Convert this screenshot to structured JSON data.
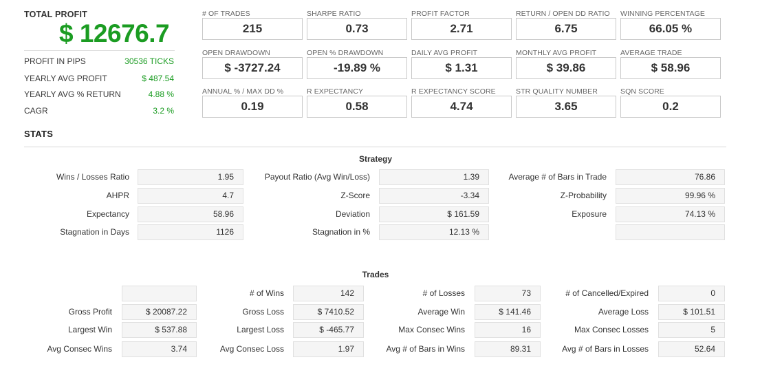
{
  "summary": {
    "total_profit_label": "TOTAL PROFIT",
    "total_profit_value": "$ 12676.7",
    "rows": [
      {
        "label": "PROFIT IN PIPS",
        "value": "30536 TICKS"
      },
      {
        "label": "YEARLY AVG PROFIT",
        "value": "$ 487.54"
      },
      {
        "label": "YEARLY AVG % RETURN",
        "value": "4.88 %"
      },
      {
        "label": "CAGR",
        "value": "3.2 %"
      }
    ]
  },
  "metrics": [
    {
      "label": "# OF TRADES",
      "value": "215"
    },
    {
      "label": "SHARPE RATIO",
      "value": "0.73"
    },
    {
      "label": "PROFIT FACTOR",
      "value": "2.71"
    },
    {
      "label": "RETURN / OPEN DD RATIO",
      "value": "6.75"
    },
    {
      "label": "WINNING PERCENTAGE",
      "value": "66.05 %"
    },
    {
      "label": "OPEN DRAWDOWN",
      "value": "$ -3727.24"
    },
    {
      "label": "OPEN % DRAWDOWN",
      "value": "-19.89 %"
    },
    {
      "label": "DAILY AVG PROFIT",
      "value": "$ 1.31"
    },
    {
      "label": "MONTHLY AVG PROFIT",
      "value": "$ 39.86"
    },
    {
      "label": "AVERAGE TRADE",
      "value": "$ 58.96"
    },
    {
      "label": "ANNUAL % / MAX DD %",
      "value": "0.19"
    },
    {
      "label": "R EXPECTANCY",
      "value": "0.58"
    },
    {
      "label": "R EXPECTANCY SCORE",
      "value": "4.74"
    },
    {
      "label": "STR QUALITY NUMBER",
      "value": "3.65"
    },
    {
      "label": "SQN SCORE",
      "value": "0.2"
    }
  ],
  "stats": {
    "title": "STATS",
    "strategy": {
      "title": "Strategy",
      "rows": [
        [
          {
            "label": "Wins / Losses Ratio",
            "value": "1.95"
          },
          {
            "label": "Payout Ratio (Avg Win/Loss)",
            "value": "1.39"
          },
          {
            "label": "Average # of Bars in Trade",
            "value": "76.86"
          }
        ],
        [
          {
            "label": "AHPR",
            "value": "4.7"
          },
          {
            "label": "Z-Score",
            "value": "-3.34"
          },
          {
            "label": "Z-Probability",
            "value": "99.96 %"
          }
        ],
        [
          {
            "label": "Expectancy",
            "value": "58.96"
          },
          {
            "label": "Deviation",
            "value": "$ 161.59"
          },
          {
            "label": "Exposure",
            "value": "74.13 %"
          }
        ],
        [
          {
            "label": "Stagnation in Days",
            "value": "1126"
          },
          {
            "label": "Stagnation in %",
            "value": "12.13 %"
          },
          {
            "label": "",
            "value": ""
          }
        ]
      ]
    },
    "trades": {
      "title": "Trades",
      "rows": [
        [
          {
            "label": "",
            "value": ""
          },
          {
            "label": "# of Wins",
            "value": "142"
          },
          {
            "label": "# of Losses",
            "value": "73"
          },
          {
            "label": "# of Cancelled/Expired",
            "value": "0"
          }
        ],
        [
          {
            "label": "Gross Profit",
            "value": "$ 20087.22"
          },
          {
            "label": "Gross Loss",
            "value": "$ 7410.52"
          },
          {
            "label": "Average Win",
            "value": "$ 141.46"
          },
          {
            "label": "Average Loss",
            "value": "$ 101.51"
          }
        ],
        [
          {
            "label": "Largest Win",
            "value": "$ 537.88"
          },
          {
            "label": "Largest Loss",
            "value": "$ -465.77"
          },
          {
            "label": "Max Consec Wins",
            "value": "16"
          },
          {
            "label": "Max Consec Losses",
            "value": "5"
          }
        ],
        [
          {
            "label": "Avg Consec Wins",
            "value": "3.74"
          },
          {
            "label": "Avg Consec Loss",
            "value": "1.97"
          },
          {
            "label": "Avg # of Bars in Wins",
            "value": "89.31"
          },
          {
            "label": "Avg # of Bars in Losses",
            "value": "52.64"
          }
        ]
      ]
    }
  }
}
